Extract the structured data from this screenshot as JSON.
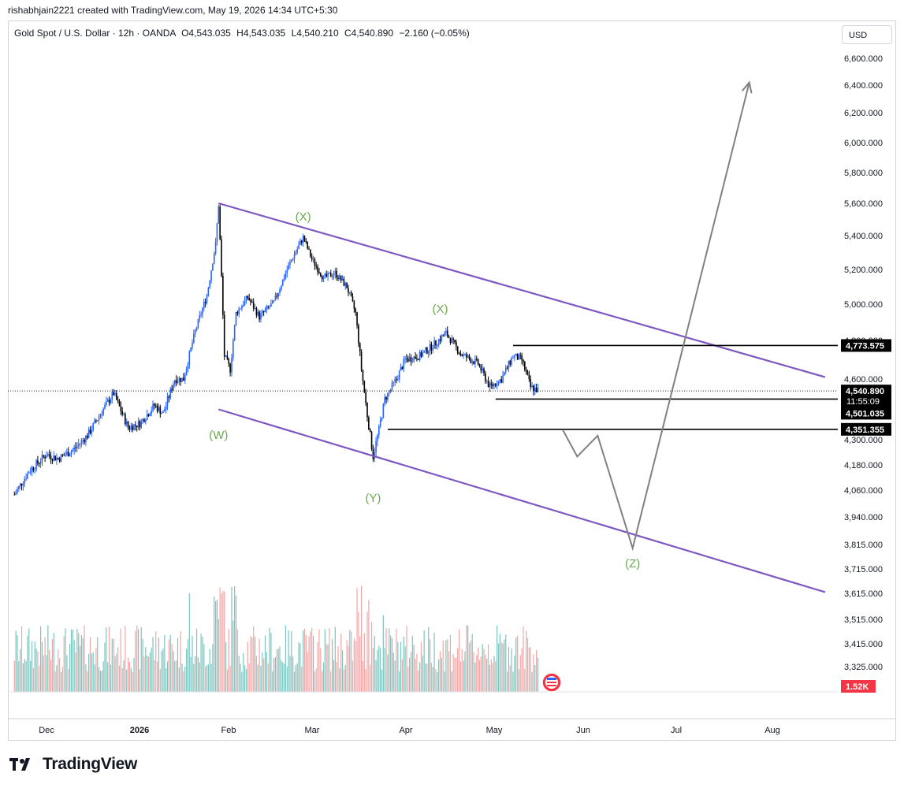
{
  "header": {
    "attribution": "rishabhjain2221 created with TradingView.com, May 19, 2026 14:34 UTC+5:30"
  },
  "legend": {
    "symbol": "Gold Spot / U.S. Dollar · 12h · OANDA",
    "open": "O4,543.035",
    "high": "H4,543.035",
    "low": "L4,540.210",
    "close": "C4,540.890",
    "change": "−2.160 (−0.05%)"
  },
  "currency_button": "USD",
  "footer": {
    "brand": "TradingView"
  },
  "colors": {
    "up": "#2962ff",
    "down": "#000000",
    "channel": "#7e57c2",
    "wave_label": "#6aa84f",
    "projection": "#808080",
    "level_line": "#000000",
    "volume_up": "#7fc4bf",
    "volume_down": "#f4a6a6",
    "volume_badge": "#f23645"
  },
  "chart_data": {
    "type": "candlestick",
    "symbol": "Gold Spot / U.S. Dollar",
    "timeframe": "12h",
    "y_axis": {
      "ticks": [
        "6,600.000",
        "6,400.000",
        "6,200.000",
        "6,000.000",
        "5,800.000",
        "5,600.000",
        "5,400.000",
        "5,200.000",
        "5,000.000",
        "4,800.000",
        "4,600.000",
        "4,300.000",
        "4,180.000",
        "4,060.000",
        "3,940.000",
        "3,815.000",
        "3,715.000",
        "3,615.000",
        "3,515.000",
        "3,415.000",
        "3,325.000"
      ],
      "tick_values": [
        6600,
        6400,
        6200,
        6000,
        5800,
        5600,
        5400,
        5200,
        5000,
        4800,
        4600,
        4300,
        4180,
        4060,
        3940,
        3815,
        3715,
        3615,
        3515,
        3415,
        3325
      ]
    },
    "x_axis": {
      "ticks": [
        "Dec",
        "2026",
        "Feb",
        "Mar",
        "Apr",
        "May",
        "Jun",
        "Jul",
        "Aug"
      ]
    },
    "price_path": [
      [
        "2025-11-20",
        4040
      ],
      [
        "2025-11-25",
        4150
      ],
      [
        "2025-12-01",
        4230
      ],
      [
        "2025-12-05",
        4210
      ],
      [
        "2025-12-10",
        4250
      ],
      [
        "2025-12-15",
        4320
      ],
      [
        "2025-12-20",
        4440
      ],
      [
        "2025-12-24",
        4530
      ],
      [
        "2025-12-29",
        4360
      ],
      [
        "2026-01-02",
        4380
      ],
      [
        "2026-01-07",
        4470
      ],
      [
        "2026-01-10",
        4430
      ],
      [
        "2026-01-14",
        4600
      ],
      [
        "2026-01-17",
        4600
      ],
      [
        "2026-01-21",
        4850
      ],
      [
        "2026-01-25",
        5050
      ],
      [
        "2026-01-28",
        5350
      ],
      [
        "2026-01-29",
        5590
      ],
      [
        "2026-01-31",
        4720
      ],
      [
        "2026-02-02",
        4650
      ],
      [
        "2026-02-04",
        4950
      ],
      [
        "2026-02-08",
        5040
      ],
      [
        "2026-02-12",
        4930
      ],
      [
        "2026-02-17",
        5010
      ],
      [
        "2026-02-22",
        5220
      ],
      [
        "2026-02-27",
        5390
      ],
      [
        "2026-03-02",
        5260
      ],
      [
        "2026-03-06",
        5150
      ],
      [
        "2026-03-10",
        5180
      ],
      [
        "2026-03-14",
        5100
      ],
      [
        "2026-03-17",
        4950
      ],
      [
        "2026-03-19",
        4650
      ],
      [
        "2026-03-21",
        4420
      ],
      [
        "2026-03-23",
        4220
      ],
      [
        "2026-03-25",
        4350
      ],
      [
        "2026-03-27",
        4500
      ],
      [
        "2026-03-31",
        4600
      ],
      [
        "2026-04-03",
        4700
      ],
      [
        "2026-04-08",
        4720
      ],
      [
        "2026-04-13",
        4780
      ],
      [
        "2026-04-17",
        4840
      ],
      [
        "2026-04-22",
        4730
      ],
      [
        "2026-04-28",
        4680
      ],
      [
        "2026-05-02",
        4560
      ],
      [
        "2026-05-06",
        4600
      ],
      [
        "2026-05-10",
        4720
      ],
      [
        "2026-05-13",
        4700
      ],
      [
        "2026-05-16",
        4560
      ],
      [
        "2026-05-19",
        4541
      ]
    ],
    "current": {
      "price": "4,540.890",
      "countdown": "11:55:09"
    },
    "levels": [
      {
        "label": "4,773.575",
        "value": 4773.575
      },
      {
        "label": "4,501.035",
        "value": 4501.035
      },
      {
        "label": "4,351.355",
        "value": 4351.355
      }
    ],
    "wave_labels": [
      {
        "text": "(W)",
        "date": "2026-01-29",
        "price": 4420
      },
      {
        "text": "(X)",
        "date": "2026-02-27",
        "price": 5410
      },
      {
        "text": "(Y)",
        "date": "2026-03-23",
        "price": 4120
      },
      {
        "text": "(X)",
        "date": "2026-04-15",
        "price": 4880
      },
      {
        "text": "(Z)",
        "date": "2026-06-20",
        "price": 3750
      }
    ],
    "projection": [
      [
        "2026-05-27",
        4350
      ],
      [
        "2026-06-01",
        4220
      ],
      [
        "2026-06-08",
        4320
      ],
      [
        "2026-06-20",
        3800
      ],
      [
        "2026-07-30",
        6420
      ]
    ],
    "channel": {
      "upper": [
        [
          "2026-01-29",
          5600
        ],
        [
          "2026-08-25",
          4610
        ]
      ],
      "lower": [
        [
          "2026-01-29",
          4450
        ],
        [
          "2026-08-25",
          3620
        ]
      ]
    },
    "volume": {
      "last_label": "1.52K"
    }
  }
}
